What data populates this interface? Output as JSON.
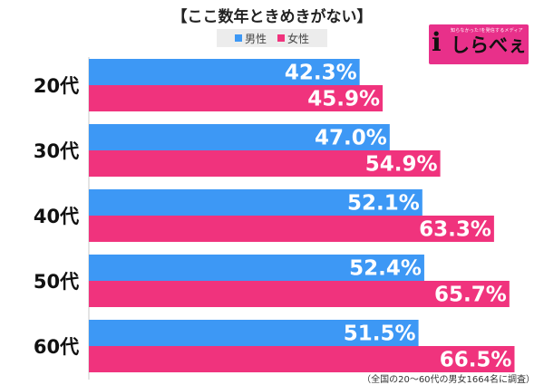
{
  "title": "【ここ数年ときめきがない】",
  "legend": {
    "male_label": "男性",
    "female_label": "女性"
  },
  "logo": {
    "tagline": "知らなかった!を発信するメディア",
    "glyph": "i",
    "text": "しらべぇ"
  },
  "footnote": "（全国の20〜60代の男女1664名に調査）",
  "colors": {
    "male": "#3d98f5",
    "female": "#f0337d"
  },
  "chart_data": {
    "type": "bar",
    "orientation": "horizontal",
    "categories": [
      "20代",
      "30代",
      "40代",
      "50代",
      "60代"
    ],
    "series": [
      {
        "name": "男性",
        "values": [
          42.3,
          47.0,
          52.1,
          52.4,
          51.5
        ],
        "labels": [
          "42.3%",
          "47.0%",
          "52.1%",
          "52.4%",
          "51.5%"
        ]
      },
      {
        "name": "女性",
        "values": [
          45.9,
          54.9,
          63.3,
          65.7,
          66.5
        ],
        "labels": [
          "45.9%",
          "54.9%",
          "63.3%",
          "65.7%",
          "66.5%"
        ]
      }
    ],
    "xlim": [
      0,
      72
    ],
    "grid": false,
    "legend_position": "top-center"
  }
}
